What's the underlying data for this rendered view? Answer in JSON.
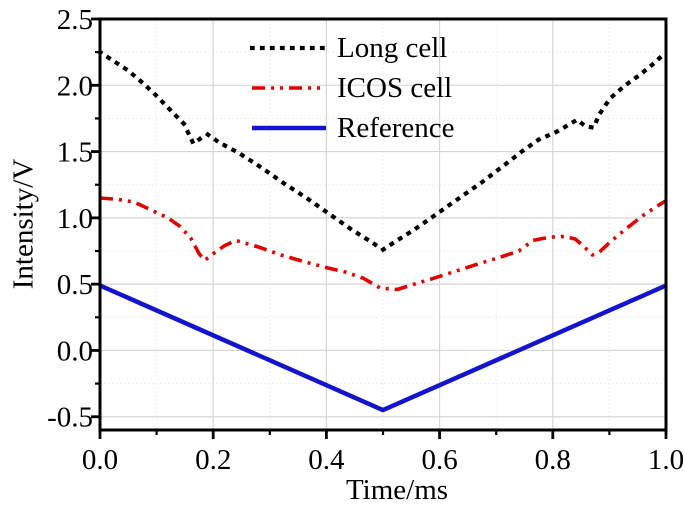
{
  "chart_data": {
    "type": "line",
    "title": "",
    "xlabel": "Time/ms",
    "ylabel": "Intensity/V",
    "xlim": [
      0.0,
      1.0
    ],
    "ylim": [
      -0.6,
      2.5
    ],
    "x_major_ticks": [
      0.0,
      0.2,
      0.4,
      0.6,
      0.8,
      1.0
    ],
    "x_tick_labels": [
      "0.0",
      "0.2",
      "0.4",
      "0.6",
      "0.8",
      "1.0"
    ],
    "x_minor_ticks": [
      0.1,
      0.3,
      0.5,
      0.7,
      0.9
    ],
    "y_major_ticks": [
      -0.5,
      0.0,
      0.5,
      1.0,
      1.5,
      2.0,
      2.5
    ],
    "y_tick_labels": [
      "-0.5",
      "0.0",
      "0.5",
      "1.0",
      "1.5",
      "2.0",
      "2.5"
    ],
    "y_minor_ticks": [
      -0.25,
      0.25,
      0.75,
      1.25,
      1.75,
      2.25
    ],
    "grid": {
      "major": true,
      "minor": true,
      "minor_style": "dotted"
    },
    "legend": {
      "position": "top-center",
      "border": false
    },
    "series": [
      {
        "name": "Long cell",
        "color": "#000000",
        "style": "dotted",
        "points": [
          [
            0.0,
            2.25
          ],
          [
            0.025,
            2.18
          ],
          [
            0.05,
            2.11
          ],
          [
            0.075,
            2.02
          ],
          [
            0.1,
            1.92
          ],
          [
            0.125,
            1.81
          ],
          [
            0.148,
            1.71
          ],
          [
            0.165,
            1.56
          ],
          [
            0.178,
            1.6
          ],
          [
            0.19,
            1.63
          ],
          [
            0.21,
            1.57
          ],
          [
            0.245,
            1.49
          ],
          [
            0.285,
            1.38
          ],
          [
            0.325,
            1.26
          ],
          [
            0.365,
            1.15
          ],
          [
            0.405,
            1.03
          ],
          [
            0.445,
            0.91
          ],
          [
            0.475,
            0.83
          ],
          [
            0.5,
            0.76
          ],
          [
            0.525,
            0.83
          ],
          [
            0.555,
            0.91
          ],
          [
            0.595,
            1.03
          ],
          [
            0.635,
            1.15
          ],
          [
            0.675,
            1.27
          ],
          [
            0.715,
            1.4
          ],
          [
            0.745,
            1.5
          ],
          [
            0.775,
            1.59
          ],
          [
            0.807,
            1.65
          ],
          [
            0.843,
            1.74
          ],
          [
            0.858,
            1.69
          ],
          [
            0.872,
            1.68
          ],
          [
            0.882,
            1.78
          ],
          [
            0.901,
            1.9
          ],
          [
            0.928,
            2.0
          ],
          [
            0.954,
            2.08
          ],
          [
            0.977,
            2.16
          ],
          [
            1.0,
            2.25
          ]
        ]
      },
      {
        "name": "ICOS cell",
        "color": "#e00000",
        "style": "dash-dot-dot",
        "points": [
          [
            0.0,
            1.15
          ],
          [
            0.03,
            1.14
          ],
          [
            0.06,
            1.12
          ],
          [
            0.09,
            1.06
          ],
          [
            0.12,
            1.0
          ],
          [
            0.14,
            0.94
          ],
          [
            0.16,
            0.85
          ],
          [
            0.175,
            0.73
          ],
          [
            0.185,
            0.68
          ],
          [
            0.2,
            0.73
          ],
          [
            0.22,
            0.79
          ],
          [
            0.24,
            0.83
          ],
          [
            0.28,
            0.78
          ],
          [
            0.32,
            0.72
          ],
          [
            0.36,
            0.67
          ],
          [
            0.4,
            0.625
          ],
          [
            0.435,
            0.59
          ],
          [
            0.465,
            0.545
          ],
          [
            0.495,
            0.47
          ],
          [
            0.525,
            0.46
          ],
          [
            0.555,
            0.5
          ],
          [
            0.59,
            0.545
          ],
          [
            0.63,
            0.6
          ],
          [
            0.67,
            0.655
          ],
          [
            0.705,
            0.7
          ],
          [
            0.74,
            0.75
          ],
          [
            0.765,
            0.83
          ],
          [
            0.795,
            0.855
          ],
          [
            0.822,
            0.86
          ],
          [
            0.84,
            0.84
          ],
          [
            0.856,
            0.78
          ],
          [
            0.87,
            0.72
          ],
          [
            0.882,
            0.74
          ],
          [
            0.902,
            0.82
          ],
          [
            0.93,
            0.92
          ],
          [
            0.96,
            1.02
          ],
          [
            0.985,
            1.09
          ],
          [
            1.0,
            1.13
          ]
        ]
      },
      {
        "name": "Reference",
        "color": "#1414cd",
        "style": "solid",
        "points": [
          [
            0.0,
            0.49
          ],
          [
            0.5,
            -0.45
          ],
          [
            1.0,
            0.49
          ]
        ]
      }
    ]
  },
  "colors": {
    "long_cell": "#000000",
    "icos_cell": "#e00000",
    "reference": "#1414cd",
    "axis": "#000000",
    "major_grid": "#d6d6d6",
    "minor_grid": "#e8e8e8",
    "background": "#ffffff"
  }
}
